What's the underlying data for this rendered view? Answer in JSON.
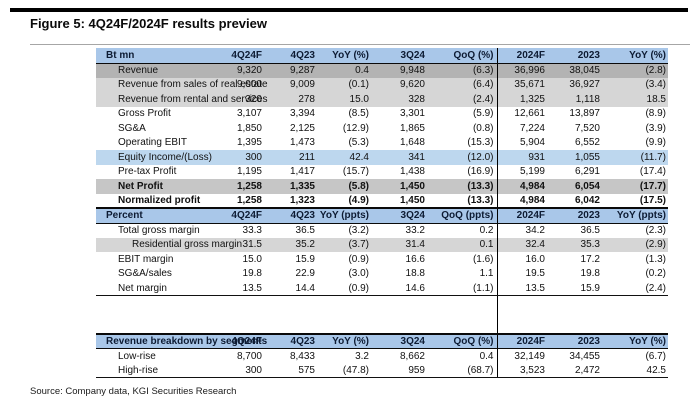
{
  "figure": {
    "title": "Figure 5: 4Q24F/2024F results preview",
    "source": "Source: Company data, KGI Securities Research"
  },
  "colors": {
    "section_header_bg": "#a9c7e9",
    "revenue_row_bg": "#b3b3b3",
    "subrow_bg": "#d6d6d6",
    "equity_row_bg": "#bdd7ee",
    "net_profit_row_bg": "#c6c6c6",
    "rule_color": "#000000"
  },
  "sections": [
    {
      "name": "bt-mn",
      "header": [
        "Bt mn",
        "4Q24F",
        "4Q23",
        "YoY (%)",
        "3Q24",
        "QoQ (%)",
        "2024F",
        "2023",
        "YoY (%)"
      ],
      "rows": [
        {
          "label": "Revenue",
          "values": [
            "9,320",
            "9,287",
            "0.4",
            "9,948",
            "(6.3)",
            "36,996",
            "38,045",
            "(2.8)"
          ],
          "style": "dark-gray"
        },
        {
          "label": "Revenue from sales of real estate",
          "values": [
            "9,000",
            "9,009",
            "(0.1)",
            "9,620",
            "(6.4)",
            "35,671",
            "36,927",
            "(3.4)"
          ],
          "style": "light-gray"
        },
        {
          "label": "Revenue from rental and services",
          "values": [
            "320",
            "278",
            "15.0",
            "328",
            "(2.4)",
            "1,325",
            "1,118",
            "18.5"
          ],
          "style": "light-gray"
        },
        {
          "label": "Gross Profit",
          "values": [
            "3,107",
            "3,394",
            "(8.5)",
            "3,301",
            "(5.9)",
            "12,661",
            "13,897",
            "(8.9)"
          ]
        },
        {
          "label": "SG&A",
          "values": [
            "1,850",
            "2,125",
            "(12.9)",
            "1,865",
            "(0.8)",
            "7,224",
            "7,520",
            "(3.9)"
          ]
        },
        {
          "label": "Operating EBIT",
          "values": [
            "1,395",
            "1,473",
            "(5.3)",
            "1,648",
            "(15.3)",
            "5,904",
            "6,552",
            "(9.9)"
          ]
        },
        {
          "label": "Equity Income/(Loss)",
          "values": [
            "300",
            "211",
            "42.4",
            "341",
            "(12.0)",
            "931",
            "1,055",
            "(11.7)"
          ],
          "style": "blue"
        },
        {
          "label": "Pre-tax Profit",
          "values": [
            "1,195",
            "1,417",
            "(15.7)",
            "1,438",
            "(16.9)",
            "5,199",
            "6,291",
            "(17.4)"
          ]
        },
        {
          "label": "Net Profit",
          "values": [
            "1,258",
            "1,335",
            "(5.8)",
            "1,450",
            "(13.3)",
            "4,984",
            "6,054",
            "(17.7)"
          ],
          "style": "net-profit",
          "bold": true
        },
        {
          "label": "Normalized profit",
          "values": [
            "1,258",
            "1,323",
            "(4.9)",
            "1,450",
            "(13.3)",
            "4,984",
            "6,042",
            "(17.5)"
          ],
          "bold": true
        }
      ]
    },
    {
      "name": "percent",
      "header": [
        "Percent",
        "4Q24F",
        "4Q23",
        "YoY (ppts)",
        "3Q24",
        "QoQ (ppts)",
        "2024F",
        "2023",
        "YoY (ppts)"
      ],
      "end_border": true,
      "rows": [
        {
          "label": "Total gross margin",
          "values": [
            "33.3",
            "36.5",
            "(3.2)",
            "33.2",
            "0.2",
            "34.2",
            "36.5",
            "(2.3)"
          ]
        },
        {
          "label": "Residential gross margin",
          "values": [
            "31.5",
            "35.2",
            "(3.7)",
            "31.4",
            "0.1",
            "32.4",
            "35.3",
            "(2.9)"
          ],
          "style": "light-gray",
          "indent": true
        },
        {
          "label": "EBIT margin",
          "values": [
            "15.0",
            "15.9",
            "(0.9)",
            "16.6",
            "(1.6)",
            "16.0",
            "17.2",
            "(1.3)"
          ]
        },
        {
          "label": "SG&A/sales",
          "values": [
            "19.8",
            "22.9",
            "(3.0)",
            "18.8",
            "1.1",
            "19.5",
            "19.8",
            "(0.2)"
          ]
        },
        {
          "label": "Net margin",
          "values": [
            "13.5",
            "14.4",
            "(0.9)",
            "14.6",
            "(1.1)",
            "13.5",
            "15.9",
            "(2.4)"
          ]
        }
      ]
    },
    {
      "name": "revenue-breakdown",
      "header": [
        "Revenue breakdown by segments",
        "4Q24F",
        "4Q23",
        "YoY (%)",
        "3Q24",
        "QoQ (%)",
        "2024F",
        "2023",
        "YoY (%)"
      ],
      "gap_before": true,
      "end_border": true,
      "rows": [
        {
          "label": "Low-rise",
          "values": [
            "8,700",
            "8,433",
            "3.2",
            "8,662",
            "0.4",
            "32,149",
            "34,455",
            "(6.7)"
          ]
        },
        {
          "label": "High-rise",
          "values": [
            "300",
            "575",
            "(47.8)",
            "959",
            "(68.7)",
            "3,523",
            "2,472",
            "42.5"
          ]
        }
      ]
    }
  ]
}
